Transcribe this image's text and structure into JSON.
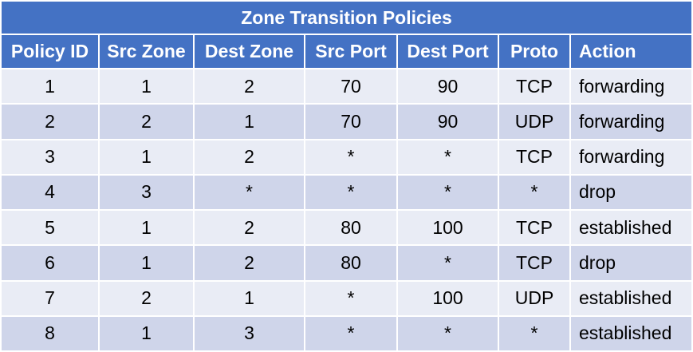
{
  "table": {
    "title": "Zone Transition Policies",
    "headers": [
      "Policy ID",
      "Src Zone",
      "Dest Zone",
      "Src Port",
      "Dest Port",
      "Proto",
      "Action"
    ],
    "rows": [
      [
        "1",
        "1",
        "2",
        "70",
        "90",
        "TCP",
        "forwarding"
      ],
      [
        "2",
        "2",
        "1",
        "70",
        "90",
        "UDP",
        "forwarding"
      ],
      [
        "3",
        "1",
        "2",
        "*",
        "*",
        "TCP",
        "forwarding"
      ],
      [
        "4",
        "3",
        "*",
        "*",
        "*",
        "*",
        "drop"
      ],
      [
        "5",
        "1",
        "2",
        "80",
        "100",
        "TCP",
        "established"
      ],
      [
        "6",
        "1",
        "2",
        "80",
        "*",
        "TCP",
        "drop"
      ],
      [
        "7",
        "2",
        "1",
        "*",
        "100",
        "UDP",
        "established"
      ],
      [
        "8",
        "1",
        "3",
        "*",
        "*",
        "*",
        "established"
      ]
    ]
  },
  "colors": {
    "header_bg": "#4472c4",
    "row_light": "#e9ecf5",
    "row_dark": "#cfd5ea"
  }
}
